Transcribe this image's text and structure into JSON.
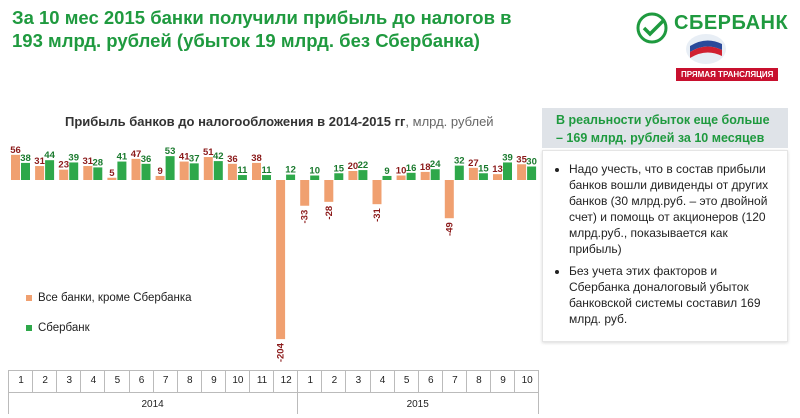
{
  "header": {
    "title": "За 10 мес 2015 банки получили прибыль до налогов в 193 млрд. рублей (убыток 19 млрд. без Сбербанка)"
  },
  "logo": {
    "text": "СБЕРБАНК",
    "live_label": "ПРЯМАЯ ТРАНСЛЯЦИЯ"
  },
  "side_panel": {
    "heading": "В реальности убыток еще больше – 169 млрд. рублей за 10 месяцев",
    "bullets": [
      "Надо учесть, что в состав прибыли банков вошли дивиденды от других банков (30 млрд.руб. – это двойной счет) и помощь от акционеров (120 млрд.руб., показывается как прибыль)",
      "Без учета этих факторов и Сбербанка доналоговый убыток банковской системы составил 169 млрд. руб."
    ]
  },
  "chart_data": {
    "type": "bar",
    "title": "Прибыль банков до налогообложения в 2014-2015 гг",
    "unit": ", млрд. рублей",
    "categories": [
      "1",
      "2",
      "3",
      "4",
      "5",
      "6",
      "7",
      "8",
      "9",
      "10",
      "11",
      "12",
      "1",
      "2",
      "3",
      "4",
      "5",
      "6",
      "7",
      "8",
      "9",
      "10"
    ],
    "years": [
      {
        "label": "2014",
        "span": 12
      },
      {
        "label": "2015",
        "span": 10
      }
    ],
    "series": [
      {
        "name": "Все банки, кроме Сбербанка",
        "color": "#f0a070",
        "label_color": "#8b1a1a",
        "values": [
          56,
          31,
          23,
          31,
          5,
          47,
          9,
          41,
          51,
          36,
          38,
          -204,
          -33,
          -28,
          20,
          -31,
          10,
          18,
          -49,
          27,
          13,
          35
        ]
      },
      {
        "name": "Сбербанк",
        "color": "#2ea84a",
        "label_color": "#1a7a2e",
        "values": [
          38,
          44,
          39,
          28,
          41,
          36,
          53,
          37,
          42,
          11,
          11,
          12,
          10,
          15,
          22,
          9,
          16,
          24,
          32,
          15,
          39,
          30
        ]
      }
    ],
    "legend_position": "left-middle",
    "grid": false
  }
}
